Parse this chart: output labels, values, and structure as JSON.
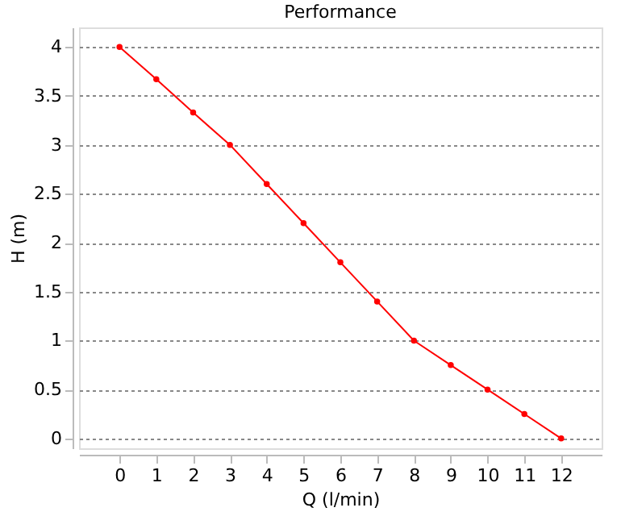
{
  "chart_data": {
    "type": "line",
    "title": "Performance",
    "xlabel": "Q (l/min)",
    "ylabel": "H (m)",
    "x": [
      0,
      1,
      2,
      3,
      4,
      5,
      6,
      7,
      8,
      9,
      10,
      11,
      12
    ],
    "series": [
      {
        "color": "#ff0000",
        "values": [
          4,
          3.67,
          3.33,
          3,
          2.6,
          2.2,
          1.8,
          1.4,
          1,
          0.75,
          0.5,
          0.25,
          0
        ]
      }
    ],
    "xlim": [
      -1.1,
      13.1
    ],
    "xticks": [
      0,
      1,
      2,
      3,
      4,
      5,
      6,
      7,
      8,
      9,
      10,
      11,
      12
    ],
    "ylim": [
      -0.1,
      4.2
    ],
    "yticks": [
      0,
      0.5,
      1,
      1.5,
      2,
      2.5,
      3,
      3.5,
      4
    ],
    "grid": "y",
    "marker": "circle",
    "line_style": "solid"
  }
}
